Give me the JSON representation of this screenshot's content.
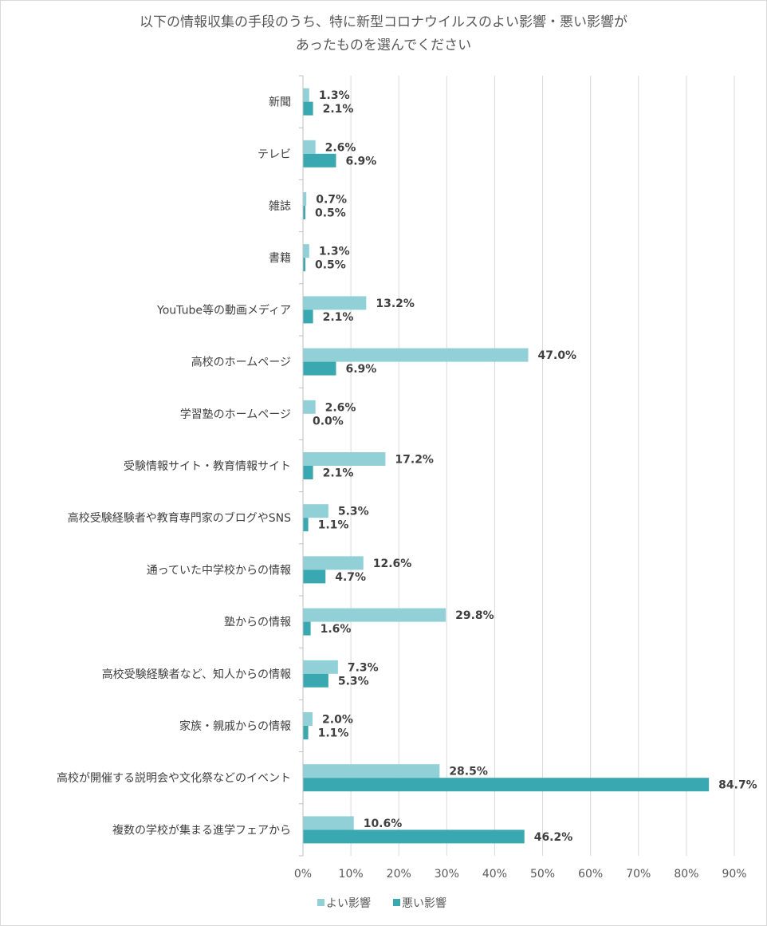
{
  "chart_data": {
    "type": "bar",
    "orientation": "horizontal",
    "title": [
      "以下の情報収集の手段のうち、特に新型コロナウイルスのよい影響・悪い影響が",
      "あったものを選んでください"
    ],
    "categories": [
      "新聞",
      "テレビ",
      "雑誌",
      "書籍",
      "YouTube等の動画メディア",
      "高校のホームページ",
      "学習塾のホームページ",
      "受験情報サイト・教育情報サイト",
      "高校受験経験者や教育専門家のブログやSNS",
      "通っていた中学校からの情報",
      "塾からの情報",
      "高校受験経験者など、知人からの情報",
      "家族・親戚からの情報",
      "高校が開催する説明会や文化祭などのイベント",
      "複数の学校が集まる進学フェアから"
    ],
    "series": [
      {
        "name": "よい影響",
        "color": "#92d0d7",
        "values": [
          1.3,
          2.6,
          0.7,
          1.3,
          13.2,
          47.0,
          2.6,
          17.2,
          5.3,
          12.6,
          29.8,
          7.3,
          2.0,
          28.5,
          10.6
        ],
        "labels": [
          "1.3%",
          "2.6%",
          "0.7%",
          "1.3%",
          "13.2%",
          "47.0%",
          "2.6%",
          "17.2%",
          "5.3%",
          "12.6%",
          "29.8%",
          "7.3%",
          "2.0%",
          "28.5%",
          "10.6%"
        ]
      },
      {
        "name": "悪い影響",
        "color": "#3aa8b0",
        "values": [
          2.1,
          6.9,
          0.5,
          0.5,
          2.1,
          6.9,
          0.0,
          2.1,
          1.1,
          4.7,
          1.6,
          5.3,
          1.1,
          84.7,
          46.2
        ],
        "labels": [
          "2.1%",
          "6.9%",
          "0.5%",
          "0.5%",
          "2.1%",
          "6.9%",
          "0.0%",
          "2.1%",
          "1.1%",
          "4.7%",
          "1.6%",
          "5.3%",
          "1.1%",
          "84.7%",
          "46.2%"
        ]
      }
    ],
    "xlim": [
      0,
      90
    ],
    "x_ticks": [
      0,
      10,
      20,
      30,
      40,
      50,
      60,
      70,
      80,
      90
    ],
    "x_tick_labels": [
      "0%",
      "10%",
      "20%",
      "30%",
      "40%",
      "50%",
      "60%",
      "70%",
      "80%",
      "90%"
    ],
    "grid": true,
    "gridline_color": "#d9d9d9",
    "legend_position": "bottom"
  }
}
